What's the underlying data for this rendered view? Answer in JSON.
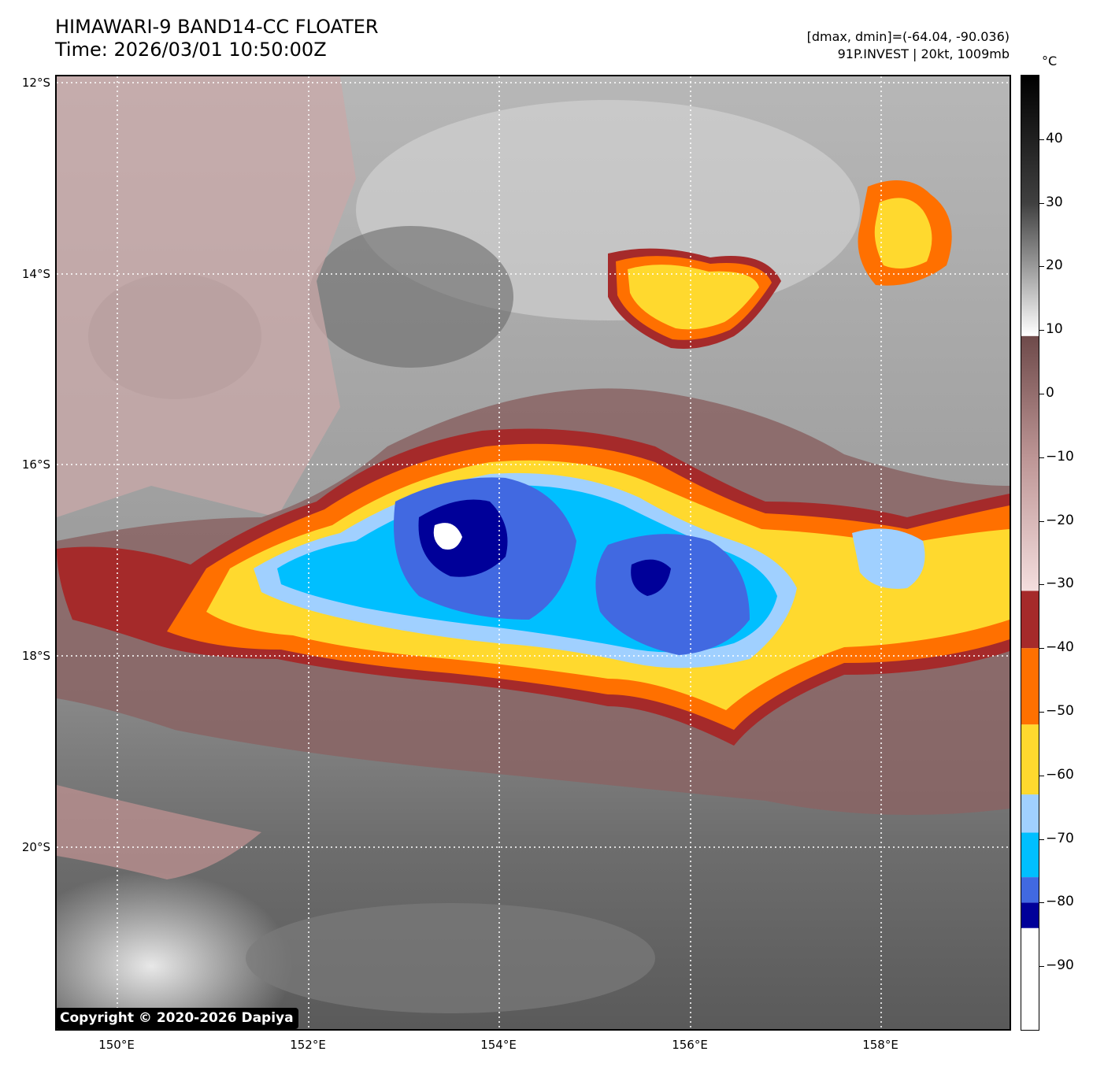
{
  "header": {
    "title_line1": "HIMAWARI-9 BAND14-CC FLOATER",
    "title_line2": "Time: 2026/03/01 10:50:00Z",
    "stats_line": "[dmax, dmin]=(-64.04, -90.036)",
    "storm_line": "91P.INVEST | 20kt, 1009mb"
  },
  "map": {
    "lat_labels": [
      "12°S",
      "14°S",
      "16°S",
      "18°S",
      "20°S"
    ],
    "lon_labels": [
      "150°E",
      "152°E",
      "154°E",
      "156°E",
      "158°E"
    ],
    "extent": {
      "lon_min": 149.38,
      "lon_max": 159.38,
      "lat_max": -11.94,
      "lat_min": -21.94
    },
    "gridlines": true
  },
  "colorbar": {
    "unit": "°C",
    "tick_labels": [
      "40",
      "30",
      "20",
      "10",
      "0",
      "−10",
      "−20",
      "−30",
      "−40",
      "−50",
      "−60",
      "−70",
      "−80",
      "−90"
    ],
    "range": [
      -100,
      50
    ],
    "bins": [
      {
        "from": -100,
        "to": -84,
        "color": "#ffffff"
      },
      {
        "from": -84,
        "to": -80,
        "color": "#000099"
      },
      {
        "from": -80,
        "to": -76,
        "color": "#4169e1"
      },
      {
        "from": -76,
        "to": -69,
        "color": "#00bfff"
      },
      {
        "from": -69,
        "to": -63,
        "color": "#a0d0ff"
      },
      {
        "from": -63,
        "to": -52,
        "color": "#ffd92e"
      },
      {
        "from": -52,
        "to": -40,
        "color": "#ff7000"
      },
      {
        "from": -40,
        "to": -31,
        "color": "#a52a2a"
      }
    ],
    "gradient_stops": [
      {
        "value": -31,
        "color": "#f4dede"
      },
      {
        "value": -10,
        "color": "#bd9595"
      },
      {
        "value": 9,
        "color": "#6e4a4a"
      },
      {
        "value": 9.1,
        "color": "#ffffff"
      },
      {
        "value": 20,
        "color": "#9a9a9a"
      },
      {
        "value": 30,
        "color": "#404040"
      },
      {
        "value": 50,
        "color": "#000000"
      }
    ]
  },
  "copyright": "Copyright © 2020-2026 Dapiya"
}
